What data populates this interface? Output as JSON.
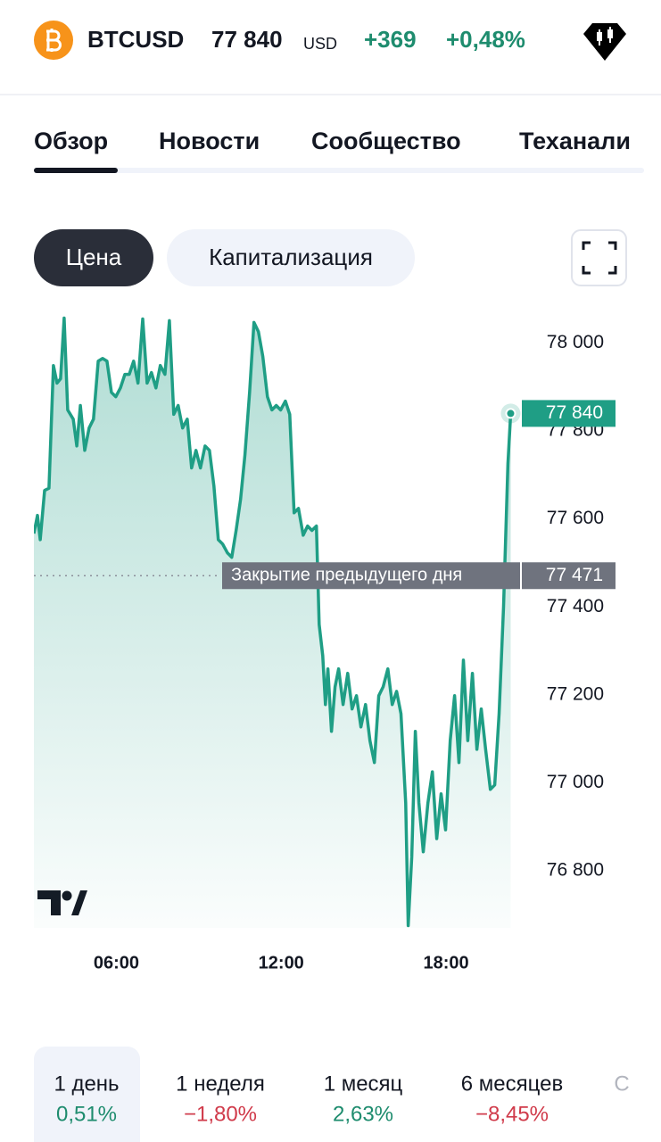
{
  "header": {
    "symbol": "BTCUSD",
    "price": "77 840",
    "currency": "USD",
    "change": "+369",
    "change_pct": "+0,48%",
    "change_color": "#1e8c6e"
  },
  "tabs": [
    "Обзор",
    "Новости",
    "Сообщество",
    "Теханали"
  ],
  "toggle": [
    "Цена",
    "Капитализация"
  ],
  "chart_data": {
    "type": "line",
    "x": [
      3.0,
      3.13,
      3.23,
      3.39,
      3.55,
      3.71,
      3.84,
      3.97,
      4.1,
      4.23,
      4.43,
      4.56,
      4.69,
      4.85,
      5.01,
      5.17,
      5.34,
      5.5,
      5.66,
      5.82,
      5.98,
      6.15,
      6.31,
      6.47,
      6.63,
      6.79,
      6.96,
      7.12,
      7.28,
      7.44,
      7.6,
      7.77,
      7.93,
      8.09,
      8.25,
      8.41,
      8.58,
      8.74,
      8.9,
      9.06,
      9.23,
      9.39,
      9.55,
      9.71,
      9.87,
      10.04,
      10.2,
      10.36,
      10.52,
      10.68,
      10.85,
      11.01,
      11.17,
      11.33,
      11.5,
      11.66,
      11.82,
      11.98,
      12.15,
      12.31,
      12.47,
      12.63,
      12.8,
      12.96,
      13.12,
      13.28,
      13.38,
      13.51,
      13.61,
      13.7,
      13.83,
      13.96,
      14.09,
      14.25,
      14.42,
      14.58,
      14.74,
      14.9,
      15.07,
      15.23,
      15.39,
      15.55,
      15.71,
      15.88,
      16.04,
      16.2,
      16.36,
      16.53,
      16.62,
      16.75,
      16.88,
      17.01,
      17.17,
      17.34,
      17.5,
      17.66,
      17.82,
      17.98,
      18.15,
      18.31,
      18.47,
      18.63,
      18.79,
      18.96,
      19.12,
      19.28,
      19.44,
      19.61,
      19.77,
      19.93,
      20.09,
      20.25,
      20.35
    ],
    "series": [
      {
        "color": "#1f9e85",
        "values": [
          77567,
          77608,
          77553,
          77665,
          77670,
          77949,
          77909,
          77919,
          78057,
          77848,
          77827,
          77766,
          77858,
          77756,
          77807,
          77827,
          77959,
          77965,
          77959,
          77888,
          77878,
          77898,
          77929,
          77929,
          77959,
          77909,
          78055,
          77909,
          77933,
          77898,
          77949,
          77929,
          78051,
          77838,
          77858,
          77807,
          77827,
          77716,
          77756,
          77716,
          77766,
          77756,
          77675,
          77553,
          77543,
          77523,
          77513,
          77574,
          77645,
          77746,
          77888,
          78047,
          78026,
          77970,
          77878,
          77848,
          77858,
          77848,
          77868,
          77838,
          77614,
          77624,
          77563,
          77584,
          77574,
          77584,
          77360,
          77289,
          77178,
          77259,
          77117,
          77218,
          77259,
          77178,
          77249,
          77168,
          77198,
          77127,
          77178,
          77096,
          77046,
          77198,
          77218,
          77259,
          77178,
          77208,
          77157,
          76954,
          76675,
          76832,
          77117,
          76954,
          76843,
          76954,
          77025,
          76873,
          76975,
          76893,
          77096,
          77198,
          77046,
          77279,
          77096,
          77249,
          77076,
          77168,
          77076,
          76985,
          76995,
          77157,
          77401,
          77726,
          77840
        ]
      }
    ],
    "xlim": [
      3,
      20.4
    ],
    "ylim": [
      76670,
      78060
    ],
    "xticks": [
      {
        "value": 6,
        "label": "06:00"
      },
      {
        "value": 12,
        "label": "12:00"
      },
      {
        "value": 18,
        "label": "18:00"
      }
    ],
    "yticks": [
      {
        "value": 76800,
        "label": "76 800"
      },
      {
        "value": 77000,
        "label": "77 000"
      },
      {
        "value": 77200,
        "label": "77 200"
      },
      {
        "value": 77400,
        "label": "77 400"
      },
      {
        "value": 77600,
        "label": "77 600"
      },
      {
        "value": 77800,
        "label": "77 800"
      },
      {
        "value": 78000,
        "label": "78 000"
      }
    ],
    "prev_close": {
      "text": "Закрытие предыдущего дня",
      "value": 77471,
      "label": "77 471"
    },
    "last_price": {
      "value": 77840,
      "label": "77 840"
    }
  },
  "periods": [
    {
      "label": "1 день",
      "change": "0,51%",
      "color": "#1e8c6e"
    },
    {
      "label": "1 неделя",
      "change": "−1,80%",
      "color": "#d03a4a"
    },
    {
      "label": "1 месяц",
      "change": "2,63%",
      "color": "#1e8c6e"
    },
    {
      "label": "6 месяцев",
      "change": "−8,45%",
      "color": "#d03a4a"
    },
    {
      "label": "С"
    }
  ]
}
